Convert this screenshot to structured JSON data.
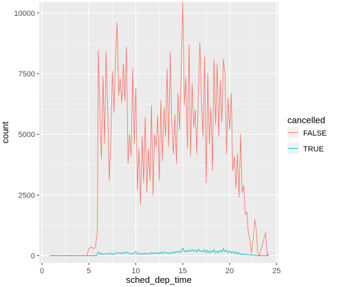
{
  "chart_data": {
    "type": "line",
    "title": "",
    "xlabel": "sched_dep_time",
    "ylabel": "count",
    "xlim": [
      -0.3,
      25.2
    ],
    "ylim": [
      -300,
      10450
    ],
    "x_ticks": [
      0,
      5,
      10,
      15,
      20,
      25
    ],
    "y_ticks": [
      0,
      2500,
      5000,
      7500,
      10000
    ],
    "x_tick_labels": [
      "0",
      "5",
      "10",
      "15",
      "20",
      "25"
    ],
    "y_tick_labels": [
      "0",
      "2500",
      "5000",
      "7500",
      "10000"
    ],
    "grid": true,
    "legend": {
      "title": "cancelled",
      "position": "right",
      "entries": [
        "FALSE",
        "TRUE"
      ]
    },
    "series": [
      {
        "name": "FALSE",
        "color": "#F8766D",
        "points": [
          [
            0.83,
            0
          ],
          [
            4.8,
            0
          ],
          [
            5.0,
            300
          ],
          [
            5.3,
            350
          ],
          [
            5.5,
            280
          ],
          [
            5.7,
            350
          ],
          [
            5.9,
            1000
          ],
          [
            6.0,
            8450
          ],
          [
            6.17,
            6000
          ],
          [
            6.33,
            4000
          ],
          [
            6.5,
            7400
          ],
          [
            6.67,
            4600
          ],
          [
            6.83,
            8400
          ],
          [
            7.0,
            6000
          ],
          [
            7.17,
            3100
          ],
          [
            7.33,
            4700
          ],
          [
            7.5,
            7600
          ],
          [
            7.67,
            5900
          ],
          [
            7.83,
            8100
          ],
          [
            8.0,
            9600
          ],
          [
            8.17,
            6600
          ],
          [
            8.33,
            7300
          ],
          [
            8.5,
            6300
          ],
          [
            8.67,
            7900
          ],
          [
            8.83,
            6400
          ],
          [
            9.0,
            8600
          ],
          [
            9.17,
            3800
          ],
          [
            9.33,
            5000
          ],
          [
            9.5,
            4100
          ],
          [
            9.67,
            7700
          ],
          [
            9.83,
            4600
          ],
          [
            10.0,
            6900
          ],
          [
            10.17,
            2700
          ],
          [
            10.33,
            4400
          ],
          [
            10.5,
            2100
          ],
          [
            10.67,
            4900
          ],
          [
            10.83,
            3000
          ],
          [
            11.0,
            5700
          ],
          [
            11.17,
            2600
          ],
          [
            11.33,
            4400
          ],
          [
            11.5,
            3100
          ],
          [
            11.67,
            6200
          ],
          [
            11.83,
            2500
          ],
          [
            12.0,
            5000
          ],
          [
            12.17,
            4500
          ],
          [
            12.33,
            5800
          ],
          [
            12.5,
            3100
          ],
          [
            12.67,
            6400
          ],
          [
            12.83,
            3900
          ],
          [
            13.0,
            6100
          ],
          [
            13.17,
            4900
          ],
          [
            13.33,
            7700
          ],
          [
            13.5,
            4500
          ],
          [
            13.67,
            8400
          ],
          [
            13.83,
            5500
          ],
          [
            14.0,
            4200
          ],
          [
            14.17,
            5800
          ],
          [
            14.33,
            3800
          ],
          [
            14.5,
            6700
          ],
          [
            14.67,
            5200
          ],
          [
            14.83,
            7400
          ],
          [
            15.0,
            10450
          ],
          [
            15.17,
            6200
          ],
          [
            15.33,
            7300
          ],
          [
            15.5,
            4400
          ],
          [
            15.67,
            8700
          ],
          [
            15.83,
            4100
          ],
          [
            16.0,
            7100
          ],
          [
            16.17,
            5300
          ],
          [
            16.33,
            6000
          ],
          [
            16.5,
            4200
          ],
          [
            16.67,
            6800
          ],
          [
            16.83,
            8800
          ],
          [
            17.0,
            6300
          ],
          [
            17.17,
            4900
          ],
          [
            17.33,
            8200
          ],
          [
            17.5,
            3000
          ],
          [
            17.67,
            7500
          ],
          [
            17.83,
            4600
          ],
          [
            18.0,
            6100
          ],
          [
            18.17,
            3500
          ],
          [
            18.33,
            8100
          ],
          [
            18.5,
            5400
          ],
          [
            18.67,
            7900
          ],
          [
            18.83,
            4900
          ],
          [
            19.0,
            7200
          ],
          [
            19.17,
            5500
          ],
          [
            19.33,
            8100
          ],
          [
            19.5,
            7500
          ],
          [
            19.67,
            4200
          ],
          [
            19.83,
            6500
          ],
          [
            20.0,
            5200
          ],
          [
            20.17,
            6700
          ],
          [
            20.33,
            3500
          ],
          [
            20.5,
            4100
          ],
          [
            20.67,
            2800
          ],
          [
            20.83,
            4200
          ],
          [
            21.0,
            2400
          ],
          [
            21.17,
            5000
          ],
          [
            21.33,
            2600
          ],
          [
            21.5,
            2900
          ],
          [
            21.67,
            1700
          ],
          [
            21.83,
            1800
          ],
          [
            22.0,
            900
          ],
          [
            22.17,
            650
          ],
          [
            22.33,
            100
          ],
          [
            22.5,
            650
          ],
          [
            22.67,
            1500
          ],
          [
            22.83,
            1100
          ],
          [
            23.0,
            100
          ],
          [
            23.17,
            0
          ],
          [
            23.83,
            950
          ],
          [
            24.0,
            0
          ],
          [
            24.17,
            100
          ]
        ]
      },
      {
        "name": "TRUE",
        "color": "#00BFC4",
        "points": [
          [
            0.83,
            0
          ],
          [
            5.8,
            0
          ],
          [
            6.0,
            150
          ],
          [
            6.17,
            60
          ],
          [
            6.33,
            100
          ],
          [
            6.5,
            40
          ],
          [
            6.67,
            80
          ],
          [
            6.83,
            70
          ],
          [
            7.0,
            90
          ],
          [
            7.17,
            50
          ],
          [
            7.33,
            120
          ],
          [
            7.5,
            40
          ],
          [
            7.67,
            100
          ],
          [
            7.83,
            80
          ],
          [
            8.0,
            130
          ],
          [
            8.17,
            90
          ],
          [
            8.33,
            120
          ],
          [
            8.5,
            70
          ],
          [
            8.67,
            140
          ],
          [
            8.83,
            90
          ],
          [
            9.0,
            150
          ],
          [
            9.17,
            100
          ],
          [
            9.33,
            110
          ],
          [
            9.5,
            60
          ],
          [
            9.67,
            100
          ],
          [
            9.83,
            70
          ],
          [
            10.0,
            180
          ],
          [
            10.17,
            60
          ],
          [
            10.33,
            100
          ],
          [
            10.5,
            40
          ],
          [
            10.67,
            100
          ],
          [
            10.83,
            50
          ],
          [
            11.0,
            110
          ],
          [
            11.17,
            50
          ],
          [
            11.33,
            100
          ],
          [
            11.5,
            60
          ],
          [
            11.67,
            130
          ],
          [
            11.83,
            80
          ],
          [
            12.0,
            120
          ],
          [
            12.17,
            80
          ],
          [
            12.33,
            140
          ],
          [
            12.5,
            70
          ],
          [
            12.67,
            150
          ],
          [
            12.83,
            80
          ],
          [
            13.0,
            160
          ],
          [
            13.17,
            90
          ],
          [
            13.33,
            130
          ],
          [
            13.5,
            70
          ],
          [
            13.67,
            140
          ],
          [
            13.83,
            100
          ],
          [
            14.0,
            160
          ],
          [
            14.17,
            110
          ],
          [
            14.33,
            180
          ],
          [
            14.5,
            120
          ],
          [
            14.67,
            190
          ],
          [
            14.83,
            130
          ],
          [
            15.0,
            310
          ],
          [
            15.17,
            160
          ],
          [
            15.33,
            210
          ],
          [
            15.5,
            150
          ],
          [
            15.67,
            240
          ],
          [
            15.83,
            170
          ],
          [
            16.0,
            250
          ],
          [
            16.17,
            180
          ],
          [
            16.33,
            230
          ],
          [
            16.5,
            150
          ],
          [
            16.67,
            280
          ],
          [
            16.83,
            170
          ],
          [
            17.0,
            200
          ],
          [
            17.17,
            150
          ],
          [
            17.33,
            260
          ],
          [
            17.5,
            120
          ],
          [
            17.67,
            220
          ],
          [
            17.83,
            110
          ],
          [
            18.0,
            200
          ],
          [
            18.17,
            130
          ],
          [
            18.33,
            250
          ],
          [
            18.5,
            110
          ],
          [
            18.67,
            190
          ],
          [
            18.83,
            120
          ],
          [
            19.0,
            220
          ],
          [
            19.17,
            140
          ],
          [
            19.33,
            290
          ],
          [
            19.5,
            160
          ],
          [
            19.67,
            230
          ],
          [
            19.83,
            120
          ],
          [
            20.0,
            190
          ],
          [
            20.17,
            110
          ],
          [
            20.33,
            170
          ],
          [
            20.5,
            80
          ],
          [
            20.67,
            160
          ],
          [
            20.83,
            60
          ],
          [
            21.0,
            130
          ],
          [
            21.17,
            50
          ],
          [
            21.33,
            80
          ],
          [
            21.5,
            30
          ],
          [
            21.67,
            60
          ],
          [
            21.83,
            40
          ],
          [
            22.0,
            50
          ],
          [
            22.17,
            20
          ],
          [
            22.5,
            30
          ],
          [
            23.0,
            0
          ],
          [
            24.17,
            0
          ]
        ]
      }
    ]
  }
}
